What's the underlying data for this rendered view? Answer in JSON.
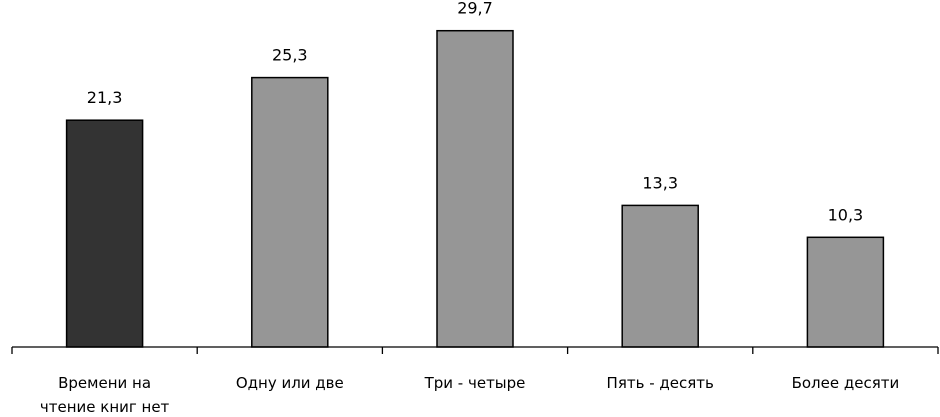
{
  "chart_data": {
    "type": "bar",
    "categories": [
      [
        "Времени на",
        "чтение книг нет"
      ],
      [
        "Одну или две"
      ],
      [
        "Три - четыре"
      ],
      [
        "Пять - десять"
      ],
      [
        "Более десяти"
      ]
    ],
    "values": [
      21.3,
      25.3,
      29.7,
      13.3,
      10.3
    ],
    "value_labels": [
      "21,3",
      "25,3",
      "29,7",
      "13,3",
      "10,3"
    ],
    "bar_colors": [
      "#333333",
      "#969696",
      "#969696",
      "#969696",
      "#969696"
    ],
    "ylim": [
      0,
      30
    ],
    "grid": false,
    "legend": "none"
  }
}
